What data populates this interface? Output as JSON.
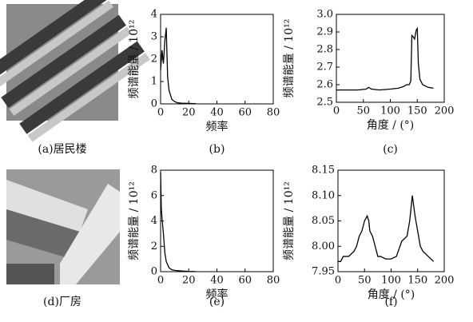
{
  "images": [
    {
      "caption": "(a)居民楼"
    },
    {
      "caption": "(d)厂房"
    }
  ],
  "chart_data": [
    {
      "type": "line",
      "caption": "(b)",
      "xlabel": "频率",
      "ylabel": "频谱能量 / 10¹²",
      "xlim": [
        0,
        80
      ],
      "ylim": [
        0,
        4
      ],
      "xticks": [
        0,
        20,
        40,
        60,
        80
      ],
      "yticks": [
        0,
        1,
        2,
        3,
        4
      ],
      "x": [
        0,
        1,
        2,
        3,
        4,
        5,
        6,
        7,
        8,
        10,
        12,
        15,
        20,
        25
      ],
      "series": [
        {
          "color": "#000000",
          "values": [
            1.5,
            2.4,
            1.8,
            2.8,
            3.4,
            1.2,
            0.6,
            0.4,
            0.2,
            0.1,
            0.05,
            0.03,
            0.02,
            0.01
          ]
        }
      ]
    },
    {
      "type": "line",
      "caption": "(c)",
      "xlabel": "角度 / (°)",
      "ylabel": "频谱能量 / 10¹²",
      "xlim": [
        0,
        200
      ],
      "ylim": [
        2.5,
        3
      ],
      "xticks": [
        0,
        50,
        100,
        150,
        200
      ],
      "yticks": [
        2.5,
        2.6,
        2.7,
        2.8,
        2.9,
        {
          "value": 3,
          "label": "3.0"
        }
      ],
      "x": [
        0,
        20,
        40,
        55,
        60,
        65,
        80,
        100,
        115,
        120,
        125,
        130,
        135,
        138,
        140,
        143,
        145,
        148,
        150,
        152,
        155,
        160,
        170,
        180
      ],
      "series": [
        {
          "color": "#000000",
          "values": [
            2.57,
            2.57,
            2.57,
            2.575,
            2.585,
            2.575,
            2.57,
            2.575,
            2.58,
            2.585,
            2.59,
            2.6,
            2.6,
            2.62,
            2.88,
            2.87,
            2.86,
            2.91,
            2.92,
            2.72,
            2.63,
            2.6,
            2.585,
            2.58
          ]
        }
      ]
    },
    {
      "type": "line",
      "caption": "(e)",
      "xlabel": "频率",
      "ylabel": "频谱能量 / 10¹²",
      "xlim": [
        0,
        80
      ],
      "ylim": [
        0,
        8
      ],
      "xticks": [
        0,
        20,
        40,
        60,
        80
      ],
      "yticks": [
        0,
        2,
        4,
        6,
        8
      ],
      "x": [
        0,
        0.5,
        1,
        2,
        3,
        4,
        6,
        8,
        10,
        15,
        20,
        25
      ],
      "series": [
        {
          "color": "#000000",
          "values": [
            7.8,
            5,
            4.2,
            3,
            1.5,
            0.8,
            0.3,
            0.15,
            0.1,
            0.05,
            0.02,
            0.01
          ]
        }
      ]
    },
    {
      "type": "line",
      "caption": "(f)",
      "xlabel": "角度 / (°)",
      "ylabel": "频谱能量 / 10¹²",
      "xlim": [
        0,
        200
      ],
      "ylim": [
        7.95,
        8.15
      ],
      "xticks": [
        0,
        50,
        100,
        150,
        200
      ],
      "yticks": [
        7.95,
        {
          "value": 8,
          "label": "8.00"
        },
        8.05,
        {
          "value": 8.1,
          "label": "8.10"
        },
        8.15
      ],
      "x": [
        0,
        5,
        10,
        20,
        30,
        35,
        40,
        45,
        50,
        55,
        58,
        60,
        65,
        70,
        75,
        80,
        90,
        100,
        110,
        120,
        130,
        135,
        140,
        145,
        150,
        155,
        160,
        170,
        180
      ],
      "series": [
        {
          "color": "#000000",
          "values": [
            7.97,
            7.97,
            7.98,
            7.98,
            7.99,
            8,
            8.02,
            8.03,
            8.05,
            8.06,
            8.05,
            8.03,
            8.02,
            8,
            7.98,
            7.98,
            7.975,
            7.975,
            7.98,
            8.01,
            8.02,
            8.05,
            8.1,
            8.06,
            8.03,
            8,
            7.99,
            7.98,
            7.97
          ]
        }
      ]
    }
  ]
}
